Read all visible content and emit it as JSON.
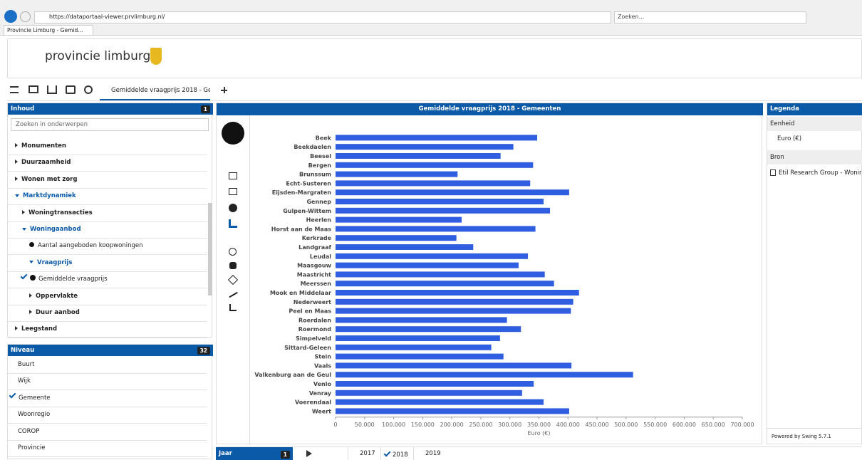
{
  "browser": {
    "url": "https://dataportaal-viewer.prvlimburg.nl/",
    "tab_title": "Provincie Limburg - Gemid...",
    "search_placeholder": "Zoeken..."
  },
  "header": {
    "logo_text": "provincie limburg"
  },
  "toolbar": {
    "tab_label": "Gemiddelde vraagprijs 2018 - Ge"
  },
  "content_panel": {
    "title": "Inhoud",
    "badge": "1",
    "search_placeholder": "Zoeken in onderwerpen",
    "items": [
      "Monumenten",
      "Duurzaamheid",
      "Wonen met zorg",
      "Marktdynamiek",
      "Woningtransacties",
      "Woningaanbod",
      "Aantal aangeboden koopwoningen",
      "Vraagprijs",
      "Gemiddelde vraagprijs",
      "Oppervlakte",
      "Duur aanbod",
      "Leegstand"
    ]
  },
  "niveau_panel": {
    "title": "Niveau",
    "badge": "32",
    "items": [
      "Buurt",
      "Wijk",
      "Gemeente",
      "Woonregio",
      "COROP",
      "Provincie"
    ]
  },
  "legend_panel": {
    "title": "Legenda",
    "eenheid_label": "Eenheid",
    "eenheid_value": "Euro (€)",
    "bron_label": "Bron",
    "bron_value": "Etil Research Group - Woning",
    "footer": "Powered by Swing 5.7.1"
  },
  "jaar_bar": {
    "title": "Jaar",
    "badge": "1",
    "years": [
      2017,
      2018,
      2019
    ]
  },
  "chart_data": {
    "type": "bar",
    "title": "Gemiddelde vraagprijs 2018 - Gemeenten",
    "categories": [
      "Beek",
      "Beekdaelen",
      "Beesel",
      "Bergen",
      "Brunssum",
      "Echt-Susteren",
      "Eijsden-Margraten",
      "Gennep",
      "Gulpen-Wittem",
      "Heerlen",
      "Horst aan de Maas",
      "Kerkrade",
      "Landgraaf",
      "Leudal",
      "Maasgouw",
      "Maastricht",
      "Meerssen",
      "Mook en Middelaar",
      "Nederweert",
      "Peel en Maas",
      "Roerdalen",
      "Roermond",
      "Simpelveld",
      "Sittard-Geleen",
      "Stein",
      "Vaals",
      "Valkenburg aan de Geul",
      "Venlo",
      "Venray",
      "Voerendaal",
      "Weert"
    ],
    "values": [
      347000,
      306000,
      284000,
      340000,
      210000,
      335000,
      402000,
      358000,
      369000,
      217000,
      344000,
      208000,
      237000,
      331000,
      315000,
      360000,
      376000,
      419000,
      409000,
      405000,
      295000,
      319000,
      283000,
      268000,
      289000,
      406000,
      512000,
      341000,
      321000,
      358000,
      402000
    ],
    "color": "#2f5ee0",
    "xlabel": "Euro (€)",
    "xlim": [
      0,
      700000
    ],
    "xticks": [
      0,
      {
        "value": 50000,
        "label": "50.000"
      },
      {
        "value": 100000,
        "label": "100.000"
      },
      {
        "value": 150000,
        "label": "150.000"
      },
      {
        "value": 200000,
        "label": "200.000"
      },
      {
        "value": 250000,
        "label": "250.000"
      },
      {
        "value": 300000,
        "label": "300.000"
      },
      {
        "value": 350000,
        "label": "350.000"
      },
      {
        "value": 400000,
        "label": "400.000"
      },
      {
        "value": 450000,
        "label": "450.000"
      },
      {
        "value": 500000,
        "label": "500.000"
      },
      {
        "value": 550000,
        "label": "550.000"
      },
      {
        "value": 600000,
        "label": "600.000"
      },
      {
        "value": 650000,
        "label": "650.000"
      },
      {
        "value": 700000,
        "label": "700.000"
      }
    ]
  }
}
